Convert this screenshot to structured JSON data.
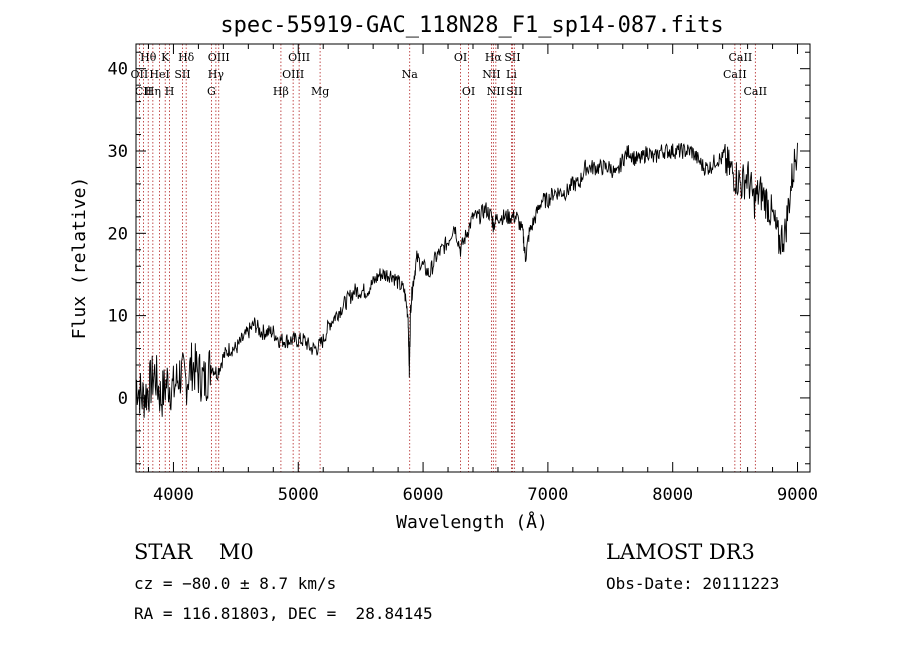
{
  "chart_data": {
    "type": "line",
    "title": "spec-55919-GAC_118N28_F1_sp14-087.fits",
    "xlabel": "Wavelength (Å)",
    "ylabel": "Flux (relative)",
    "xlim": [
      3700,
      9100
    ],
    "ylim": [
      -9,
      43
    ],
    "xticks": [
      4000,
      5000,
      6000,
      7000,
      8000,
      9000
    ],
    "yticks": [
      0,
      10,
      20,
      30,
      40
    ],
    "grid": false,
    "series": [
      {
        "name": "spectrum",
        "x": [
          3700,
          3750,
          3800,
          3850,
          3900,
          3950,
          4000,
          4050,
          4100,
          4150,
          4200,
          4250,
          4300,
          4350,
          4400,
          4450,
          4500,
          4550,
          4600,
          4650,
          4700,
          4750,
          4800,
          4850,
          4900,
          4950,
          5000,
          5050,
          5100,
          5150,
          5200,
          5250,
          5300,
          5350,
          5400,
          5450,
          5500,
          5550,
          5600,
          5650,
          5700,
          5750,
          5800,
          5850,
          5880,
          5890,
          5900,
          5920,
          5950,
          6000,
          6050,
          6100,
          6150,
          6200,
          6250,
          6300,
          6350,
          6400,
          6450,
          6500,
          6550,
          6563,
          6600,
          6650,
          6700,
          6750,
          6800,
          6820,
          6850,
          6900,
          6950,
          7000,
          7050,
          7100,
          7150,
          7200,
          7250,
          7300,
          7350,
          7400,
          7450,
          7500,
          7550,
          7600,
          7650,
          7700,
          7750,
          7800,
          7850,
          7900,
          7950,
          8000,
          8050,
          8100,
          8150,
          8200,
          8250,
          8300,
          8350,
          8400,
          8450,
          8500,
          8550,
          8600,
          8650,
          8700,
          8750,
          8800,
          8850,
          8900,
          8950,
          9000
        ],
        "y": [
          2,
          0,
          1,
          3,
          0,
          2,
          1,
          3,
          2,
          4,
          3,
          2,
          4,
          3,
          5,
          6,
          6,
          7,
          8,
          9,
          8,
          8,
          8,
          7,
          7,
          7,
          7,
          7,
          6,
          6,
          7,
          9,
          10,
          11,
          12,
          13,
          13,
          13,
          14,
          15,
          15,
          15,
          14,
          13,
          10,
          3,
          11,
          14,
          17,
          16,
          15,
          17,
          18,
          19,
          21,
          18,
          20,
          22,
          22,
          23,
          22,
          21,
          22,
          22,
          22,
          22,
          20,
          17,
          20,
          22,
          24,
          24,
          25,
          25,
          25,
          26,
          26,
          28,
          28,
          28,
          28,
          28,
          27,
          29,
          30,
          29,
          29,
          30,
          29,
          30,
          30,
          30,
          30,
          30,
          30,
          29,
          28,
          28,
          29,
          29,
          28,
          27,
          26,
          27,
          24,
          25,
          24,
          22,
          19,
          20,
          26,
          31
        ]
      }
    ],
    "lines": [
      {
        "label": "Hθ",
        "x": 3798,
        "row": 1
      },
      {
        "label": "OII",
        "x": 3727,
        "row": 2
      },
      {
        "label": "CII",
        "x": 3760,
        "row": 3
      },
      {
        "label": "K",
        "x": 3934,
        "row": 1
      },
      {
        "label": "H",
        "x": 3969,
        "row": 3
      },
      {
        "label": "HeI",
        "x": 3889,
        "row": 2
      },
      {
        "label": "Hη",
        "x": 3835,
        "row": 3
      },
      {
        "label": "Hδ",
        "x": 4102,
        "row": 1
      },
      {
        "label": "SII",
        "x": 4072,
        "row": 2
      },
      {
        "label": "OIII",
        "x": 4363,
        "row": 1
      },
      {
        "label": "Hγ",
        "x": 4340,
        "row": 2
      },
      {
        "label": "G",
        "x": 4304,
        "row": 3
      },
      {
        "label": "OIII",
        "x": 5007,
        "row": 1
      },
      {
        "label": "OIII",
        "x": 4959,
        "row": 2
      },
      {
        "label": "Hβ",
        "x": 4861,
        "row": 3
      },
      {
        "label": "Mg",
        "x": 5175,
        "row": 3
      },
      {
        "label": "Na",
        "x": 5893,
        "row": 2
      },
      {
        "label": "OI",
        "x": 6300,
        "row": 1
      },
      {
        "label": "OI",
        "x": 6364,
        "row": 3
      },
      {
        "label": "Hα",
        "x": 6563,
        "row": 1
      },
      {
        "label": "NII",
        "x": 6548,
        "row": 2
      },
      {
        "label": "NII",
        "x": 6583,
        "row": 3
      },
      {
        "label": "SII",
        "x": 6716,
        "row": 1
      },
      {
        "label": "Li",
        "x": 6708,
        "row": 2
      },
      {
        "label": "SII",
        "x": 6731,
        "row": 3
      },
      {
        "label": "CaII",
        "x": 8542,
        "row": 1
      },
      {
        "label": "CaII",
        "x": 8498,
        "row": 2
      },
      {
        "label": "CaII",
        "x": 8662,
        "row": 3
      }
    ]
  },
  "info": {
    "class_line": "STAR    M0",
    "survey": "LAMOST DR3",
    "cz": "cz = −80.0 ± 8.7 km/s",
    "obs_date": "Obs-Date: 20111223",
    "radec": "RA = 116.81803, DEC =  28.84145"
  }
}
